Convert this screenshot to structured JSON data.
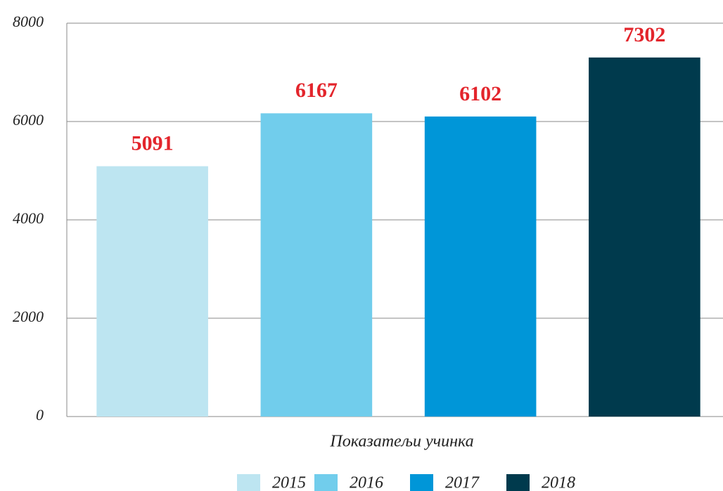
{
  "chart_data": {
    "type": "bar",
    "categories": [
      "Показатељи учинка"
    ],
    "series": [
      {
        "name": "2015",
        "color": "#bde5f1",
        "values": [
          5091
        ]
      },
      {
        "name": "2016",
        "color": "#71cdec",
        "values": [
          6167
        ]
      },
      {
        "name": "2017",
        "color": "#0096d8",
        "values": [
          6102
        ]
      },
      {
        "name": "2018",
        "color": "#003a4d",
        "values": [
          7302
        ]
      }
    ],
    "ylim": [
      0,
      8000
    ],
    "yticks": [
      0,
      2000,
      4000,
      6000,
      8000
    ],
    "grid": true,
    "legend": "bottom"
  }
}
